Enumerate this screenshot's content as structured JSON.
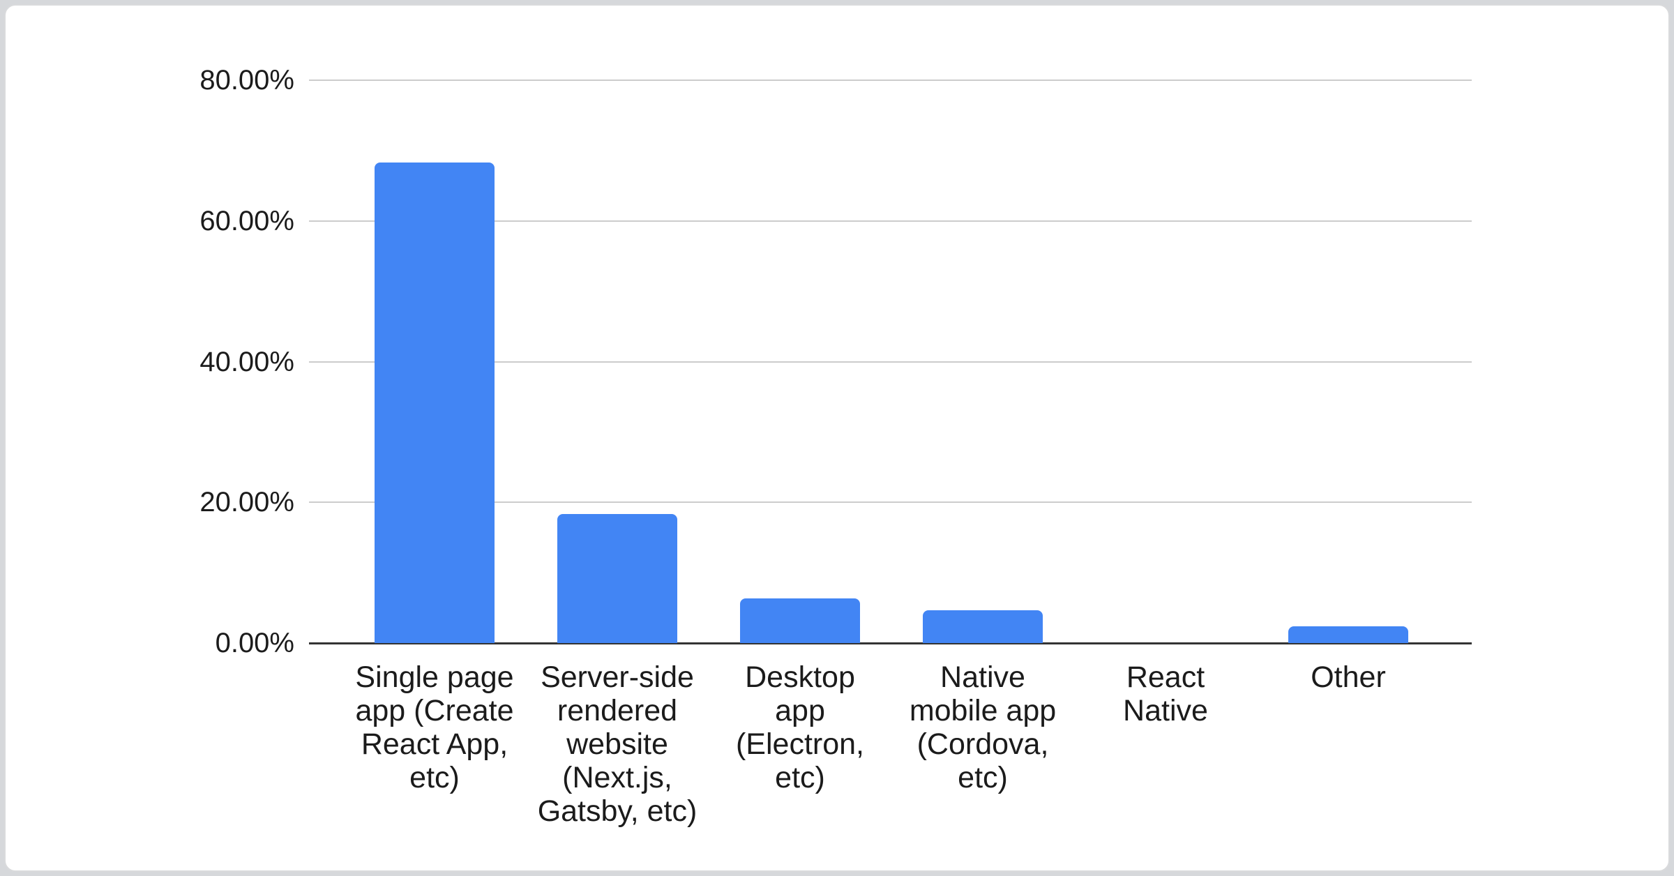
{
  "page": {
    "background_color": "#d6d8db",
    "card_background_color": "#ffffff",
    "card_border_color": "#d9dadc"
  },
  "chart_data": {
    "type": "bar",
    "title": "",
    "xlabel": "",
    "ylabel": "",
    "legend": "none",
    "grid": true,
    "ylim": [
      0,
      80
    ],
    "yticks": [
      {
        "label": "0.00%",
        "value": 0
      },
      {
        "label": "20.00%",
        "value": 20
      },
      {
        "label": "40.00%",
        "value": 40
      },
      {
        "label": "60.00%",
        "value": 60
      },
      {
        "label": "80.00%",
        "value": 80
      }
    ],
    "categories": [
      "Single page app (Create React App, etc)",
      "Server-side rendered website (Next.js, Gatsby, etc)",
      "Desktop app (Electron, etc)",
      "Native mobile app (Cordova, etc)",
      "React Native",
      "Other"
    ],
    "category_lines": [
      [
        "Single page",
        "app (Create",
        "React App,",
        "etc)"
      ],
      [
        "Server-side",
        "rendered",
        "website",
        "(Next.js,",
        "Gatsby, etc)"
      ],
      [
        "Desktop",
        "app",
        "(Electron,",
        "etc)"
      ],
      [
        "Native",
        "mobile app",
        "(Cordova,",
        "etc)"
      ],
      [
        "React",
        "Native"
      ],
      [
        "Other"
      ]
    ],
    "values": [
      68.3,
      18.3,
      6.3,
      4.7,
      0.0,
      2.4
    ],
    "value_unit": "%",
    "bar_color": "#4285f4",
    "axis_line_color": "#333333",
    "gridline_color": "#cccccc",
    "label_color": "#1b1b1b"
  }
}
